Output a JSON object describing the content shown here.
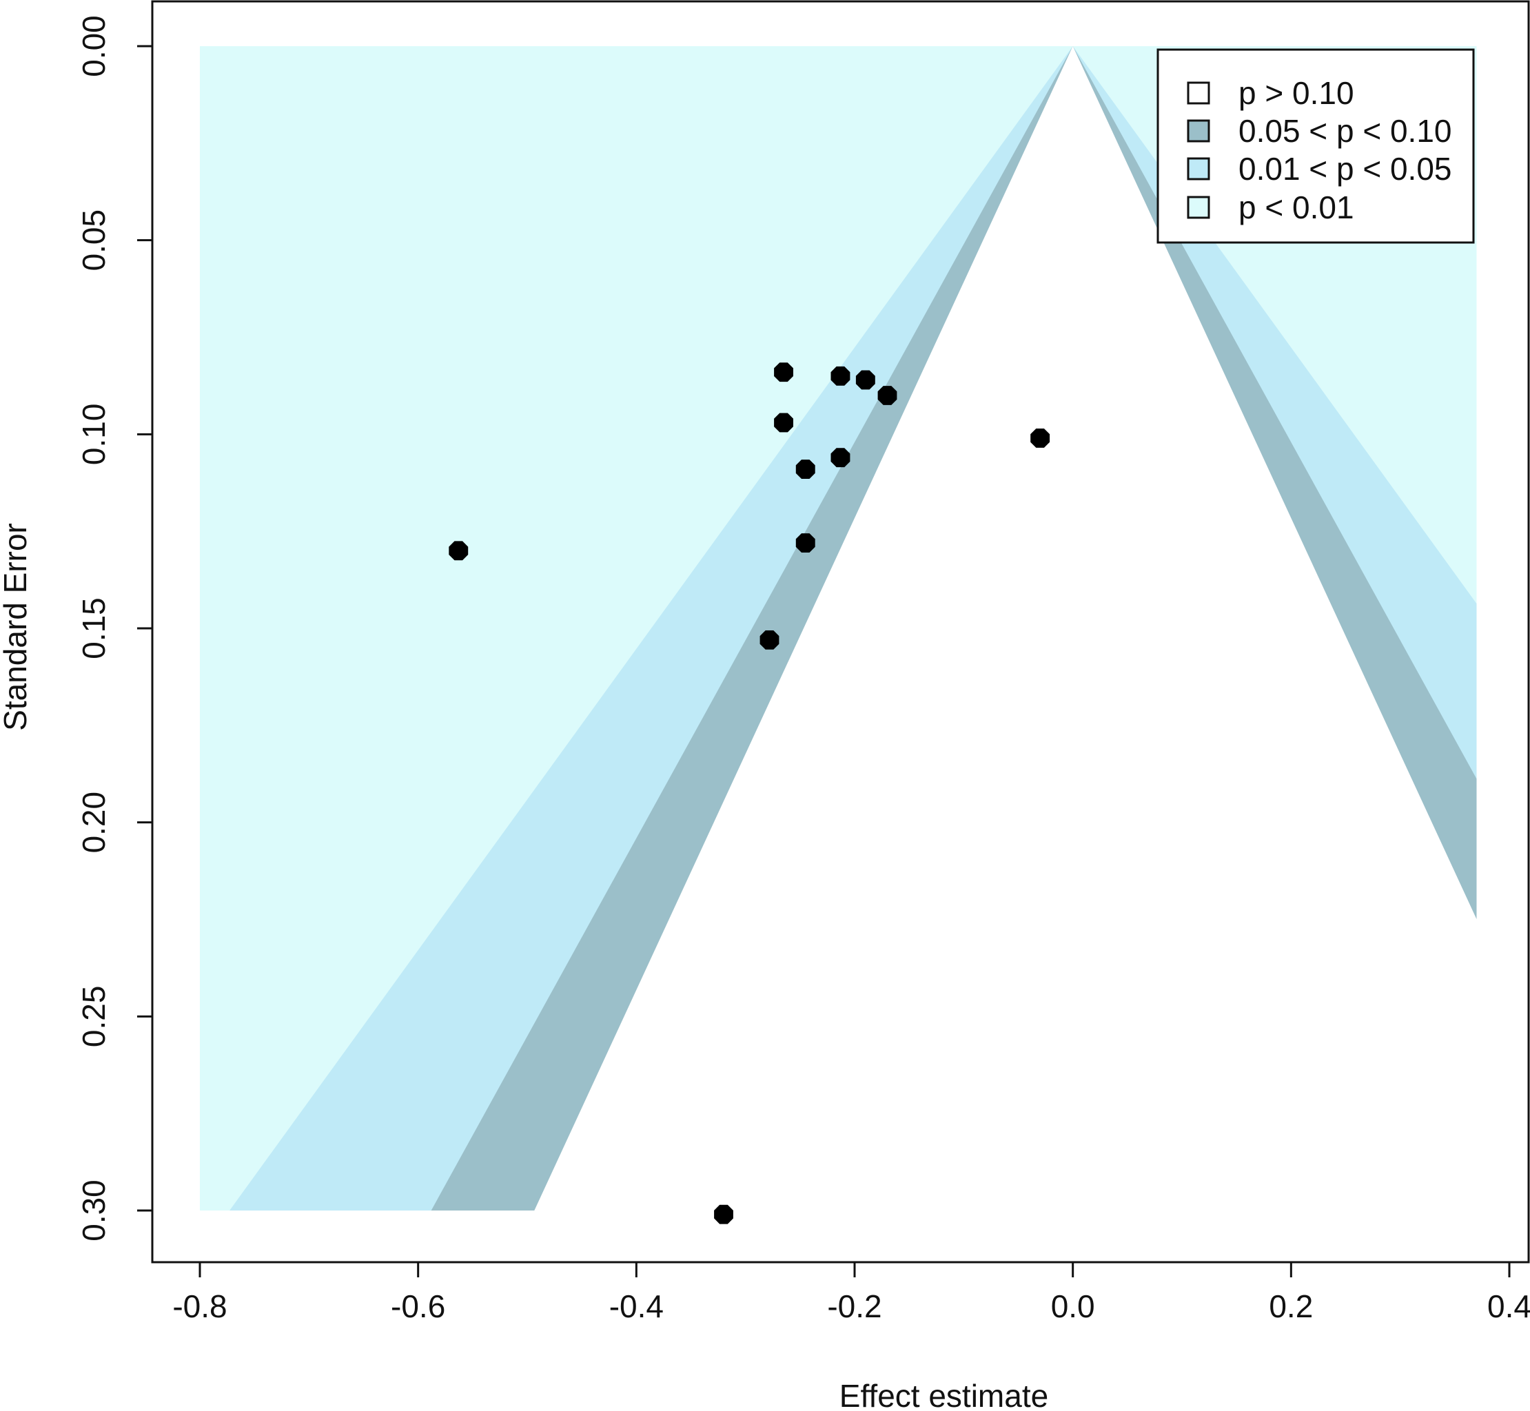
{
  "chart_data": {
    "type": "scatter",
    "subtype": "contour-enhanced funnel plot",
    "xlabel": "Effect estimate",
    "ylabel": "Standard Error",
    "xlim": [
      -0.8,
      0.37
    ],
    "ylim": [
      0,
      0.3
    ],
    "y_reversed": true,
    "x_ticks": [
      -0.8,
      -0.6,
      -0.4,
      -0.2,
      0.0,
      0.2,
      0.4
    ],
    "x_tick_labels": [
      "-0.8",
      "-0.6",
      "-0.4",
      "-0.2",
      "0.0",
      "0.2",
      "0.4"
    ],
    "y_ticks": [
      0,
      0.05,
      0.1,
      0.15,
      0.2,
      0.25,
      0.3
    ],
    "y_tick_labels": [
      "0.00",
      "0.05",
      "0.10",
      "0.15",
      "0.20",
      "0.25",
      "0.30"
    ],
    "funnel_center": 0.0,
    "contours": [
      {
        "label": "p > 0.10",
        "z": 1.645,
        "color": "#ffffff"
      },
      {
        "label": "0.05 < p < 0.10",
        "z": 1.96,
        "color": "#9bbfc9"
      },
      {
        "label": "0.01 < p < 0.05",
        "z": 2.576,
        "color": "#bfeaf7"
      },
      {
        "label": "p < 0.01",
        "z": null,
        "color": "#dcfbfb"
      }
    ],
    "points": [
      {
        "x": -0.265,
        "y": 0.084
      },
      {
        "x": -0.213,
        "y": 0.085
      },
      {
        "x": -0.19,
        "y": 0.086
      },
      {
        "x": -0.17,
        "y": 0.09
      },
      {
        "x": -0.265,
        "y": 0.097
      },
      {
        "x": -0.213,
        "y": 0.106
      },
      {
        "x": -0.245,
        "y": 0.109
      },
      {
        "x": -0.03,
        "y": 0.101
      },
      {
        "x": -0.245,
        "y": 0.128
      },
      {
        "x": -0.563,
        "y": 0.13
      },
      {
        "x": -0.278,
        "y": 0.153
      },
      {
        "x": -0.32,
        "y": 0.301
      }
    ],
    "legend": {
      "position": "top-right",
      "entries": [
        "p > 0.10",
        "0.05 < p < 0.10",
        "0.01 < p < 0.05",
        "p < 0.01"
      ]
    },
    "grid": false
  }
}
